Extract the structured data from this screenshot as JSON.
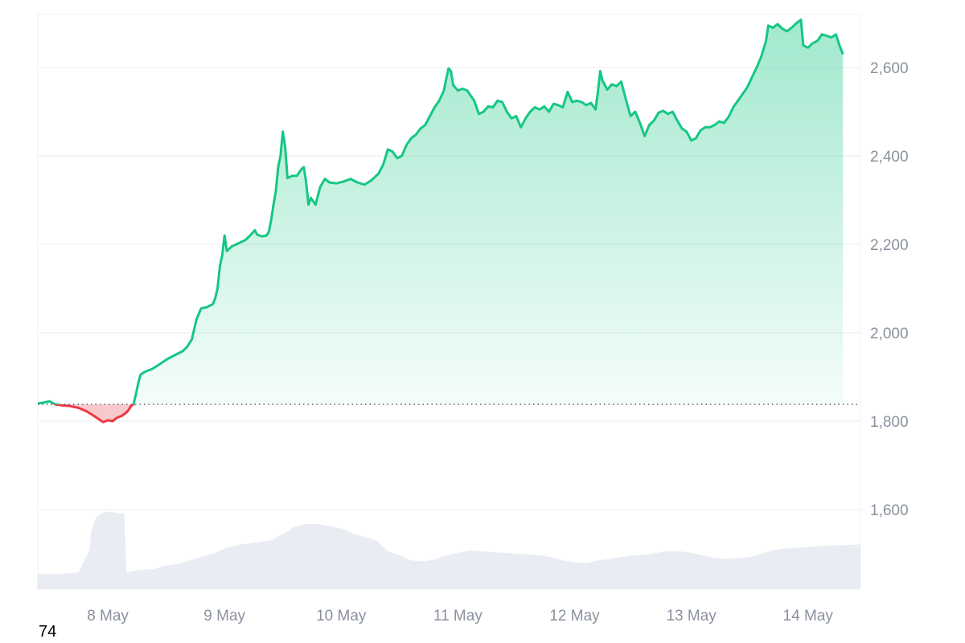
{
  "chart_data": {
    "type": "area",
    "baseline": 1838,
    "ylim": [
      1420,
      2720
    ],
    "y_ticks": [
      {
        "value": 2600,
        "label": "2,600"
      },
      {
        "value": 2400,
        "label": "2,400"
      },
      {
        "value": 2200,
        "label": "2,200"
      },
      {
        "value": 2000,
        "label": "2,000"
      },
      {
        "value": 1800,
        "label": "1,800"
      },
      {
        "value": 1600,
        "label": "1,600"
      }
    ],
    "x_ticks": [
      {
        "t": 0.6,
        "label": "8 May"
      },
      {
        "t": 1.6,
        "label": "9 May"
      },
      {
        "t": 2.6,
        "label": "10 May"
      },
      {
        "t": 3.6,
        "label": "11 May"
      },
      {
        "t": 4.6,
        "label": "12 May"
      },
      {
        "t": 5.6,
        "label": "13 May"
      },
      {
        "t": 6.6,
        "label": "14 May"
      }
    ],
    "xlim": [
      0,
      7.05
    ],
    "price_series": [
      [
        0.0,
        1840
      ],
      [
        0.05,
        1842
      ],
      [
        0.1,
        1845
      ],
      [
        0.15,
        1838
      ],
      [
        0.2,
        1836
      ],
      [
        0.28,
        1834
      ],
      [
        0.35,
        1830
      ],
      [
        0.42,
        1822
      ],
      [
        0.48,
        1812
      ],
      [
        0.52,
        1805
      ],
      [
        0.56,
        1798
      ],
      [
        0.6,
        1802
      ],
      [
        0.64,
        1800
      ],
      [
        0.68,
        1808
      ],
      [
        0.72,
        1812
      ],
      [
        0.76,
        1820
      ],
      [
        0.78,
        1826
      ],
      [
        0.8,
        1835
      ],
      [
        0.82,
        1838
      ],
      [
        0.84,
        1860
      ],
      [
        0.86,
        1885
      ],
      [
        0.88,
        1905
      ],
      [
        0.92,
        1912
      ],
      [
        0.98,
        1918
      ],
      [
        1.05,
        1930
      ],
      [
        1.12,
        1942
      ],
      [
        1.18,
        1950
      ],
      [
        1.24,
        1958
      ],
      [
        1.28,
        1968
      ],
      [
        1.32,
        1985
      ],
      [
        1.36,
        2030
      ],
      [
        1.4,
        2055
      ],
      [
        1.45,
        2058
      ],
      [
        1.5,
        2065
      ],
      [
        1.52,
        2078
      ],
      [
        1.54,
        2100
      ],
      [
        1.56,
        2150
      ],
      [
        1.58,
        2175
      ],
      [
        1.6,
        2220
      ],
      [
        1.62,
        2185
      ],
      [
        1.66,
        2195
      ],
      [
        1.7,
        2200
      ],
      [
        1.74,
        2205
      ],
      [
        1.78,
        2210
      ],
      [
        1.82,
        2220
      ],
      [
        1.86,
        2232
      ],
      [
        1.88,
        2222
      ],
      [
        1.92,
        2218
      ],
      [
        1.96,
        2220
      ],
      [
        1.98,
        2228
      ],
      [
        2.0,
        2255
      ],
      [
        2.02,
        2290
      ],
      [
        2.04,
        2320
      ],
      [
        2.06,
        2375
      ],
      [
        2.08,
        2400
      ],
      [
        2.1,
        2455
      ],
      [
        2.12,
        2420
      ],
      [
        2.14,
        2350
      ],
      [
        2.18,
        2355
      ],
      [
        2.22,
        2355
      ],
      [
        2.26,
        2370
      ],
      [
        2.28,
        2375
      ],
      [
        2.3,
        2340
      ],
      [
        2.32,
        2290
      ],
      [
        2.34,
        2305
      ],
      [
        2.38,
        2290
      ],
      [
        2.42,
        2330
      ],
      [
        2.46,
        2348
      ],
      [
        2.5,
        2340
      ],
      [
        2.56,
        2338
      ],
      [
        2.62,
        2342
      ],
      [
        2.68,
        2348
      ],
      [
        2.74,
        2340
      ],
      [
        2.8,
        2335
      ],
      [
        2.86,
        2345
      ],
      [
        2.92,
        2360
      ],
      [
        2.96,
        2380
      ],
      [
        3.0,
        2415
      ],
      [
        3.04,
        2410
      ],
      [
        3.08,
        2395
      ],
      [
        3.12,
        2400
      ],
      [
        3.16,
        2425
      ],
      [
        3.2,
        2440
      ],
      [
        3.24,
        2448
      ],
      [
        3.28,
        2462
      ],
      [
        3.32,
        2470
      ],
      [
        3.36,
        2490
      ],
      [
        3.4,
        2510
      ],
      [
        3.44,
        2525
      ],
      [
        3.48,
        2548
      ],
      [
        3.5,
        2575
      ],
      [
        3.52,
        2598
      ],
      [
        3.54,
        2592
      ],
      [
        3.56,
        2560
      ],
      [
        3.6,
        2548
      ],
      [
        3.64,
        2552
      ],
      [
        3.68,
        2548
      ],
      [
        3.7,
        2540
      ],
      [
        3.74,
        2525
      ],
      [
        3.78,
        2495
      ],
      [
        3.82,
        2500
      ],
      [
        3.86,
        2512
      ],
      [
        3.9,
        2510
      ],
      [
        3.94,
        2525
      ],
      [
        3.98,
        2522
      ],
      [
        4.02,
        2500
      ],
      [
        4.06,
        2485
      ],
      [
        4.1,
        2490
      ],
      [
        4.14,
        2465
      ],
      [
        4.18,
        2485
      ],
      [
        4.22,
        2500
      ],
      [
        4.26,
        2510
      ],
      [
        4.3,
        2505
      ],
      [
        4.34,
        2512
      ],
      [
        4.38,
        2500
      ],
      [
        4.42,
        2518
      ],
      [
        4.46,
        2515
      ],
      [
        4.5,
        2510
      ],
      [
        4.54,
        2545
      ],
      [
        4.58,
        2522
      ],
      [
        4.62,
        2525
      ],
      [
        4.66,
        2522
      ],
      [
        4.7,
        2515
      ],
      [
        4.74,
        2520
      ],
      [
        4.78,
        2505
      ],
      [
        4.8,
        2545
      ],
      [
        4.82,
        2592
      ],
      [
        4.84,
        2570
      ],
      [
        4.88,
        2550
      ],
      [
        4.92,
        2562
      ],
      [
        4.96,
        2558
      ],
      [
        5.0,
        2568
      ],
      [
        5.04,
        2528
      ],
      [
        5.08,
        2490
      ],
      [
        5.12,
        2500
      ],
      [
        5.16,
        2475
      ],
      [
        5.2,
        2445
      ],
      [
        5.24,
        2470
      ],
      [
        5.28,
        2480
      ],
      [
        5.32,
        2498
      ],
      [
        5.36,
        2502
      ],
      [
        5.4,
        2495
      ],
      [
        5.44,
        2500
      ],
      [
        5.48,
        2480
      ],
      [
        5.52,
        2462
      ],
      [
        5.56,
        2455
      ],
      [
        5.6,
        2435
      ],
      [
        5.64,
        2440
      ],
      [
        5.68,
        2458
      ],
      [
        5.72,
        2465
      ],
      [
        5.76,
        2465
      ],
      [
        5.8,
        2470
      ],
      [
        5.84,
        2478
      ],
      [
        5.88,
        2475
      ],
      [
        5.92,
        2488
      ],
      [
        5.96,
        2510
      ],
      [
        6.0,
        2525
      ],
      [
        6.04,
        2540
      ],
      [
        6.08,
        2555
      ],
      [
        6.12,
        2578
      ],
      [
        6.16,
        2600
      ],
      [
        6.2,
        2625
      ],
      [
        6.24,
        2660
      ],
      [
        6.26,
        2695
      ],
      [
        6.3,
        2690
      ],
      [
        6.34,
        2698
      ],
      [
        6.38,
        2688
      ],
      [
        6.42,
        2682
      ],
      [
        6.46,
        2690
      ],
      [
        6.5,
        2700
      ],
      [
        6.54,
        2708
      ],
      [
        6.56,
        2650
      ],
      [
        6.6,
        2645
      ],
      [
        6.64,
        2655
      ],
      [
        6.68,
        2660
      ],
      [
        6.72,
        2675
      ],
      [
        6.76,
        2672
      ],
      [
        6.8,
        2668
      ],
      [
        6.84,
        2675
      ],
      [
        6.87,
        2650
      ],
      [
        6.9,
        2630
      ]
    ],
    "volume_series": [
      [
        0.0,
        0.18
      ],
      [
        0.2,
        0.18
      ],
      [
        0.35,
        0.2
      ],
      [
        0.4,
        0.35
      ],
      [
        0.44,
        0.45
      ],
      [
        0.46,
        0.7
      ],
      [
        0.5,
        0.85
      ],
      [
        0.55,
        0.9
      ],
      [
        0.6,
        0.92
      ],
      [
        0.7,
        0.9
      ],
      [
        0.74,
        0.9
      ],
      [
        0.76,
        0.2
      ],
      [
        0.85,
        0.22
      ],
      [
        1.0,
        0.24
      ],
      [
        1.1,
        0.28
      ],
      [
        1.2,
        0.3
      ],
      [
        1.3,
        0.34
      ],
      [
        1.4,
        0.38
      ],
      [
        1.5,
        0.42
      ],
      [
        1.6,
        0.48
      ],
      [
        1.7,
        0.52
      ],
      [
        1.8,
        0.54
      ],
      [
        1.9,
        0.56
      ],
      [
        2.0,
        0.58
      ],
      [
        2.1,
        0.65
      ],
      [
        2.2,
        0.74
      ],
      [
        2.3,
        0.77
      ],
      [
        2.4,
        0.77
      ],
      [
        2.5,
        0.75
      ],
      [
        2.6,
        0.72
      ],
      [
        2.7,
        0.66
      ],
      [
        2.8,
        0.62
      ],
      [
        2.9,
        0.58
      ],
      [
        3.0,
        0.45
      ],
      [
        3.1,
        0.4
      ],
      [
        3.2,
        0.34
      ],
      [
        3.3,
        0.33
      ],
      [
        3.4,
        0.35
      ],
      [
        3.5,
        0.4
      ],
      [
        3.6,
        0.43
      ],
      [
        3.7,
        0.46
      ],
      [
        3.8,
        0.45
      ],
      [
        3.9,
        0.44
      ],
      [
        4.0,
        0.43
      ],
      [
        4.1,
        0.42
      ],
      [
        4.2,
        0.41
      ],
      [
        4.3,
        0.4
      ],
      [
        4.4,
        0.38
      ],
      [
        4.5,
        0.34
      ],
      [
        4.6,
        0.32
      ],
      [
        4.7,
        0.31
      ],
      [
        4.8,
        0.34
      ],
      [
        4.9,
        0.36
      ],
      [
        5.0,
        0.38
      ],
      [
        5.1,
        0.4
      ],
      [
        5.2,
        0.41
      ],
      [
        5.3,
        0.43
      ],
      [
        5.4,
        0.45
      ],
      [
        5.5,
        0.45
      ],
      [
        5.6,
        0.43
      ],
      [
        5.7,
        0.4
      ],
      [
        5.8,
        0.37
      ],
      [
        5.9,
        0.36
      ],
      [
        6.0,
        0.37
      ],
      [
        6.1,
        0.38
      ],
      [
        6.2,
        0.42
      ],
      [
        6.3,
        0.46
      ],
      [
        6.4,
        0.48
      ],
      [
        6.5,
        0.49
      ],
      [
        6.6,
        0.5
      ],
      [
        6.7,
        0.51
      ],
      [
        6.8,
        0.52
      ],
      [
        6.9,
        0.52
      ],
      [
        7.05,
        0.53
      ]
    ],
    "colors": {
      "up_line": "#16c784",
      "down_line": "#ea3943",
      "up_fill": "#16c784",
      "down_fill": "#ea3943",
      "grid": "#eff2f5",
      "volume": "#cfd6e4",
      "baseline": "#5c6370",
      "tick_text": "#8a919e"
    },
    "grid": true,
    "legend": "none"
  },
  "corner_label": "74"
}
